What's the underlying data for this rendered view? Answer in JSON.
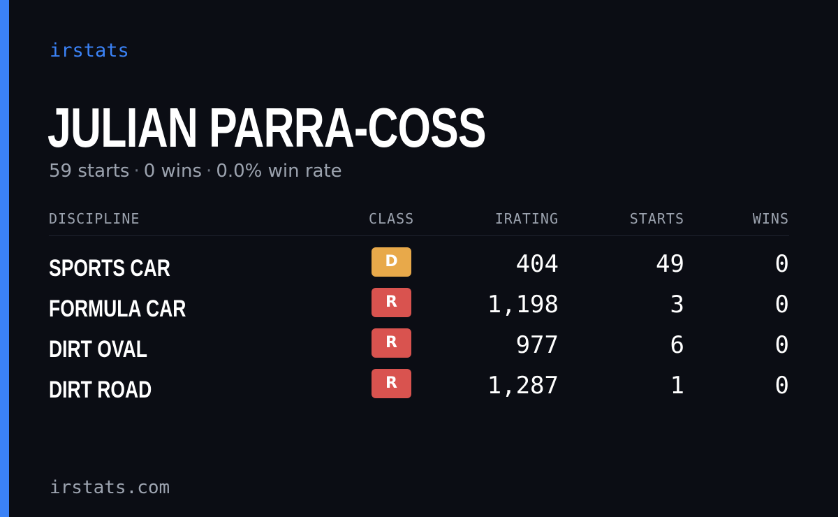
{
  "brand": "irstats",
  "driver": {
    "name": "JULIAN PARRA-COSS",
    "starts_text": "59 starts",
    "wins_text": "0 wins",
    "win_rate_text": "0.0% win rate",
    "separator": "·"
  },
  "table": {
    "headers": {
      "discipline": "DISCIPLINE",
      "class": "CLASS",
      "irating": "IRATING",
      "starts": "STARTS",
      "wins": "WINS"
    },
    "rows": [
      {
        "discipline": "SPORTS CAR",
        "class": "D",
        "class_color": "#e8a94a",
        "irating": "404",
        "starts": "49",
        "wins": "0"
      },
      {
        "discipline": "FORMULA CAR",
        "class": "R",
        "class_color": "#d9534f",
        "irating": "1,198",
        "starts": "3",
        "wins": "0"
      },
      {
        "discipline": "DIRT OVAL",
        "class": "R",
        "class_color": "#d9534f",
        "irating": "977",
        "starts": "6",
        "wins": "0"
      },
      {
        "discipline": "DIRT ROAD",
        "class": "R",
        "class_color": "#d9534f",
        "irating": "1,287",
        "starts": "1",
        "wins": "0"
      }
    ]
  },
  "footer": "irstats.com",
  "colors": {
    "accent": "#3b82f6",
    "background": "#0b0d14"
  }
}
